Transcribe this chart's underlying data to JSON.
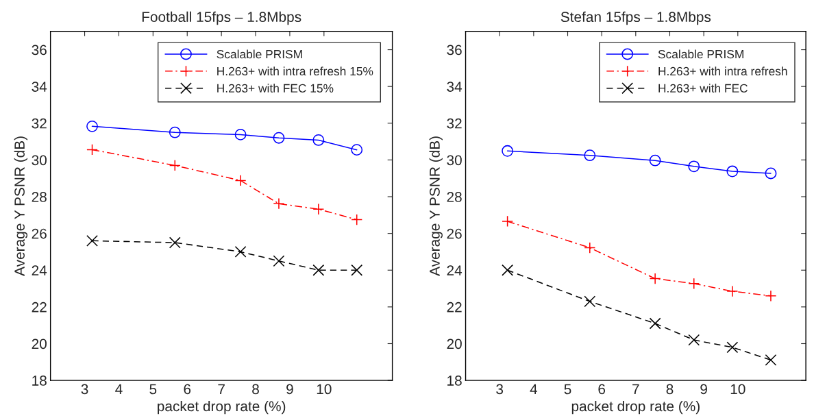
{
  "chart_data": [
    {
      "type": "line",
      "title": "Football 15fps – 1.8Mbps",
      "xlabel": "packet drop rate (%)",
      "ylabel": "Average Y PSNR (dB)",
      "x": [
        3.22,
        5.64,
        7.56,
        8.68,
        9.84,
        10.96
      ],
      "xlim": [
        2,
        12
      ],
      "xticks": [
        3,
        4,
        5,
        6,
        7,
        8,
        9,
        10
      ],
      "ylim": [
        18,
        37
      ],
      "yticks": [
        18,
        20,
        22,
        24,
        26,
        28,
        30,
        32,
        34,
        36
      ],
      "grid": false,
      "legend": "top",
      "series": [
        {
          "name": "Scalable PRISM",
          "color": "#0000ff",
          "marker": "circle",
          "line_style": "solid",
          "values": [
            31.83,
            31.5,
            31.38,
            31.2,
            31.08,
            30.55
          ]
        },
        {
          "name": "H.263+ with intra refresh 15%",
          "color": "#ff0000",
          "marker": "plus",
          "line_style": "dashdot",
          "values": [
            30.56,
            29.7,
            28.88,
            27.62,
            27.32,
            26.75
          ]
        },
        {
          "name": "H.263+ with FEC 15%",
          "color": "#000000",
          "marker": "cross",
          "line_style": "dashed",
          "values": [
            25.6,
            25.5,
            25.0,
            24.5,
            24.0,
            24.0
          ]
        }
      ]
    },
    {
      "type": "line",
      "title": "Stefan 15fps – 1.8Mbps",
      "xlabel": "packet drop rate (%)",
      "ylabel": "Average Y PSNR (dB)",
      "x": [
        3.23,
        5.65,
        7.57,
        8.71,
        9.84,
        10.97
      ],
      "xlim": [
        2,
        12
      ],
      "xticks": [
        3,
        4,
        5,
        6,
        7,
        8,
        9,
        10
      ],
      "ylim": [
        18,
        37
      ],
      "yticks": [
        18,
        20,
        22,
        24,
        26,
        28,
        30,
        32,
        34,
        36
      ],
      "grid": false,
      "legend": "top right",
      "series": [
        {
          "name": "Scalable PRISM",
          "color": "#0000ff",
          "marker": "circle",
          "line_style": "solid",
          "values": [
            30.49,
            30.25,
            29.97,
            29.65,
            29.38,
            29.27
          ]
        },
        {
          "name": "H.263+ with intra refresh",
          "color": "#ff0000",
          "marker": "plus",
          "line_style": "dashdot",
          "values": [
            26.66,
            25.22,
            23.54,
            23.27,
            22.85,
            22.6
          ]
        },
        {
          "name": "H.263+ with FEC",
          "color": "#000000",
          "marker": "cross",
          "line_style": "dashed",
          "values": [
            24.0,
            22.3,
            21.1,
            20.2,
            19.8,
            19.11
          ]
        }
      ]
    }
  ]
}
